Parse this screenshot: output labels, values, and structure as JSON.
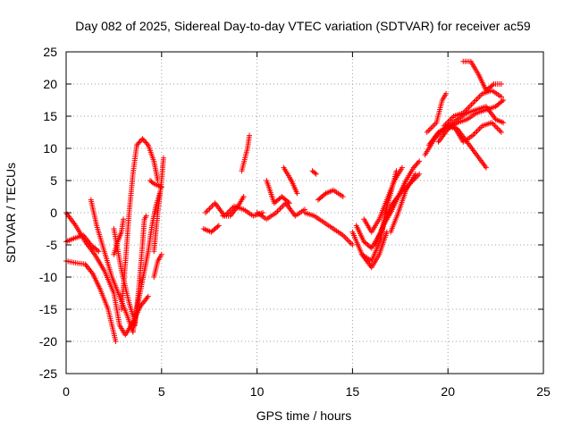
{
  "chart_data": {
    "type": "scatter",
    "title": "Day 082 of 2025, Sidereal Day-to-day VTEC variation (SDTVAR) for receiver ac59",
    "xlabel": "GPS time / hours",
    "ylabel": "SDTVAR / TECUs",
    "xlim": [
      0,
      25
    ],
    "ylim": [
      -25,
      25
    ],
    "x_ticks": [
      0,
      5,
      10,
      15,
      20,
      25
    ],
    "y_ticks": [
      -25,
      -20,
      -15,
      -10,
      -5,
      0,
      5,
      10,
      15,
      20,
      25
    ],
    "grid": true,
    "marker": "+",
    "series": [
      {
        "name": "SDTVAR",
        "color": "#ff0000",
        "segments": [
          [
            [
              0.0,
              0.0
            ],
            [
              0.5,
              -2.0
            ],
            [
              1.0,
              -4.5
            ],
            [
              1.5,
              -6.5
            ],
            [
              2.0,
              -9.0
            ],
            [
              2.5,
              -12.5
            ],
            [
              2.8,
              -17.5
            ],
            [
              3.1,
              -19.0
            ],
            [
              3.5,
              -17.0
            ],
            [
              3.9,
              -14.5
            ],
            [
              4.3,
              -13.0
            ]
          ],
          [
            [
              0.0,
              -4.5
            ],
            [
              0.4,
              -4.0
            ],
            [
              0.9,
              -3.5
            ],
            [
              1.3,
              -5.0
            ],
            [
              1.7,
              -6.0
            ]
          ],
          [
            [
              0.0,
              -7.5
            ],
            [
              0.5,
              -7.8
            ],
            [
              1.0,
              -8.0
            ],
            [
              1.4,
              -9.5
            ],
            [
              1.8,
              -12.0
            ],
            [
              2.2,
              -15.0
            ],
            [
              2.6,
              -20.0
            ]
          ],
          [
            [
              1.3,
              2.0
            ],
            [
              1.6,
              -2.0
            ],
            [
              2.0,
              -6.0
            ],
            [
              2.4,
              -10.0
            ],
            [
              2.8,
              -13.0
            ],
            [
              3.2,
              -16.0
            ],
            [
              3.5,
              -18.5
            ]
          ],
          [
            [
              2.5,
              -2.5
            ],
            [
              2.9,
              -9.0
            ],
            [
              3.3,
              -14.0
            ],
            [
              3.6,
              -17.0
            ]
          ],
          [
            [
              2.5,
              -6.5
            ],
            [
              2.7,
              -4.5
            ],
            [
              2.9,
              -3.0
            ],
            [
              3.0,
              -1.0
            ]
          ],
          [
            [
              2.9,
              -15.0
            ],
            [
              3.1,
              -8.0
            ],
            [
              3.3,
              0.0
            ],
            [
              3.5,
              6.0
            ],
            [
              3.7,
              10.5
            ],
            [
              4.0,
              11.5
            ],
            [
              4.3,
              10.5
            ],
            [
              4.6,
              8.0
            ],
            [
              4.8,
              5.0
            ]
          ],
          [
            [
              3.5,
              -18.5
            ],
            [
              3.7,
              -15.0
            ],
            [
              3.9,
              -12.0
            ],
            [
              4.1,
              -9.0
            ],
            [
              4.3,
              -6.0
            ],
            [
              4.5,
              -2.0
            ],
            [
              4.7,
              1.0
            ],
            [
              4.9,
              3.0
            ]
          ],
          [
            [
              3.6,
              -17.5
            ],
            [
              3.8,
              -12.0
            ],
            [
              4.0,
              -5.0
            ],
            [
              4.1,
              -1.0
            ],
            [
              4.2,
              -0.5
            ]
          ],
          [
            [
              4.6,
              -10.0
            ],
            [
              4.8,
              -7.5
            ],
            [
              5.0,
              -6.5
            ]
          ],
          [
            [
              4.6,
              -6.0
            ],
            [
              4.8,
              0.0
            ],
            [
              5.0,
              5.0
            ],
            [
              5.1,
              8.5
            ]
          ],
          [
            [
              5.0,
              4.0
            ],
            [
              4.6,
              4.5
            ],
            [
              4.4,
              5.0
            ]
          ],
          [
            [
              7.2,
              -2.5
            ],
            [
              7.6,
              -3.0
            ],
            [
              8.0,
              -2.0
            ]
          ],
          [
            [
              7.3,
              0.0
            ],
            [
              7.8,
              1.5
            ],
            [
              8.3,
              -0.5
            ],
            [
              8.8,
              1.0
            ],
            [
              9.3,
              0.5
            ],
            [
              9.8,
              -0.5
            ],
            [
              10.3,
              0.0
            ]
          ],
          [
            [
              8.2,
              -0.5
            ],
            [
              8.6,
              -0.5
            ],
            [
              9.0,
              1.0
            ],
            [
              9.3,
              2.5
            ]
          ],
          [
            [
              9.2,
              6.5
            ],
            [
              9.5,
              10.0
            ],
            [
              9.6,
              12.0
            ]
          ],
          [
            [
              10.0,
              0.0
            ],
            [
              10.5,
              -1.0
            ],
            [
              11.0,
              0.0
            ],
            [
              11.5,
              1.5
            ],
            [
              12.0,
              -0.5
            ],
            [
              12.5,
              0.5
            ]
          ],
          [
            [
              10.5,
              5.0
            ],
            [
              10.9,
              1.5
            ],
            [
              11.3,
              2.5
            ],
            [
              11.7,
              1.5
            ]
          ],
          [
            [
              11.4,
              7.0
            ],
            [
              11.8,
              5.0
            ],
            [
              12.1,
              3.0
            ]
          ],
          [
            [
              12.5,
              0.0
            ],
            [
              13.0,
              -0.5
            ],
            [
              13.5,
              -1.5
            ],
            [
              14.0,
              -2.5
            ],
            [
              14.5,
              -3.5
            ],
            [
              15.0,
              -5.0
            ]
          ],
          [
            [
              12.9,
              6.5
            ],
            [
              13.1,
              6.0
            ]
          ],
          [
            [
              13.2,
              2.0
            ],
            [
              13.6,
              3.0
            ],
            [
              14.0,
              3.5
            ],
            [
              14.5,
              2.5
            ]
          ],
          [
            [
              15.0,
              -3.0
            ],
            [
              15.5,
              -6.5
            ],
            [
              16.0,
              -8.5
            ],
            [
              16.4,
              -6.5
            ],
            [
              16.8,
              -3.0
            ]
          ],
          [
            [
              15.2,
              -2.0
            ],
            [
              15.6,
              -4.5
            ],
            [
              16.0,
              -5.5
            ],
            [
              16.5,
              -3.0
            ],
            [
              17.0,
              1.0
            ],
            [
              17.5,
              3.0
            ],
            [
              18.0,
              4.5
            ],
            [
              18.5,
              6.0
            ]
          ],
          [
            [
              15.6,
              -1.0
            ],
            [
              16.0,
              -3.0
            ],
            [
              16.4,
              -1.0
            ],
            [
              16.8,
              2.0
            ],
            [
              17.2,
              5.0
            ],
            [
              17.6,
              7.0
            ]
          ],
          [
            [
              16.2,
              -5.0
            ],
            [
              16.6,
              -2.0
            ],
            [
              17.0,
              0.0
            ],
            [
              17.4,
              2.5
            ],
            [
              17.8,
              5.0
            ],
            [
              18.2,
              7.0
            ],
            [
              18.5,
              8.0
            ]
          ],
          [
            [
              15.5,
              -6.5
            ],
            [
              16.0,
              -7.5
            ],
            [
              16.5,
              -4.0
            ],
            [
              16.7,
              0.0
            ],
            [
              17.0,
              3.0
            ],
            [
              17.3,
              6.5
            ]
          ],
          [
            [
              17.0,
              -3.0
            ],
            [
              17.4,
              0.0
            ],
            [
              17.8,
              3.5
            ],
            [
              18.3,
              6.0
            ]
          ],
          [
            [
              18.8,
              9.0
            ],
            [
              19.3,
              11.5
            ],
            [
              19.8,
              13.0
            ],
            [
              20.3,
              13.5
            ],
            [
              20.8,
              11.0
            ],
            [
              21.3,
              12.0
            ],
            [
              21.8,
              13.5
            ],
            [
              22.3,
              14.0
            ],
            [
              22.8,
              12.5
            ]
          ],
          [
            [
              18.9,
              12.5
            ],
            [
              19.4,
              14.0
            ],
            [
              19.7,
              17.5
            ],
            [
              19.9,
              18.5
            ]
          ],
          [
            [
              19.0,
              10.5
            ],
            [
              19.5,
              12.5
            ],
            [
              20.0,
              13.5
            ],
            [
              20.5,
              13.0
            ],
            [
              21.0,
              11.0
            ],
            [
              21.5,
              9.0
            ],
            [
              22.0,
              7.0
            ]
          ],
          [
            [
              19.5,
              11.0
            ],
            [
              20.0,
              13.0
            ],
            [
              20.5,
              14.0
            ],
            [
              21.0,
              14.5
            ],
            [
              21.5,
              15.5
            ],
            [
              22.0,
              16.0
            ],
            [
              22.5,
              16.5
            ],
            [
              22.9,
              17.5
            ]
          ],
          [
            [
              20.0,
              13.5
            ],
            [
              20.5,
              14.5
            ],
            [
              21.0,
              15.5
            ],
            [
              21.5,
              16.0
            ],
            [
              22.0,
              16.5
            ],
            [
              22.5,
              14.5
            ],
            [
              22.9,
              14.0
            ]
          ],
          [
            [
              20.8,
              23.5
            ],
            [
              21.2,
              23.5
            ],
            [
              21.6,
              21.5
            ],
            [
              22.0,
              19.0
            ],
            [
              22.4,
              20.0
            ],
            [
              22.8,
              20.0
            ]
          ],
          [
            [
              19.8,
              13.5
            ],
            [
              20.3,
              15.0
            ],
            [
              20.8,
              15.5
            ],
            [
              21.3,
              17.0
            ],
            [
              21.8,
              18.5
            ],
            [
              22.3,
              19.0
            ],
            [
              22.8,
              18.0
            ]
          ]
        ]
      }
    ]
  }
}
